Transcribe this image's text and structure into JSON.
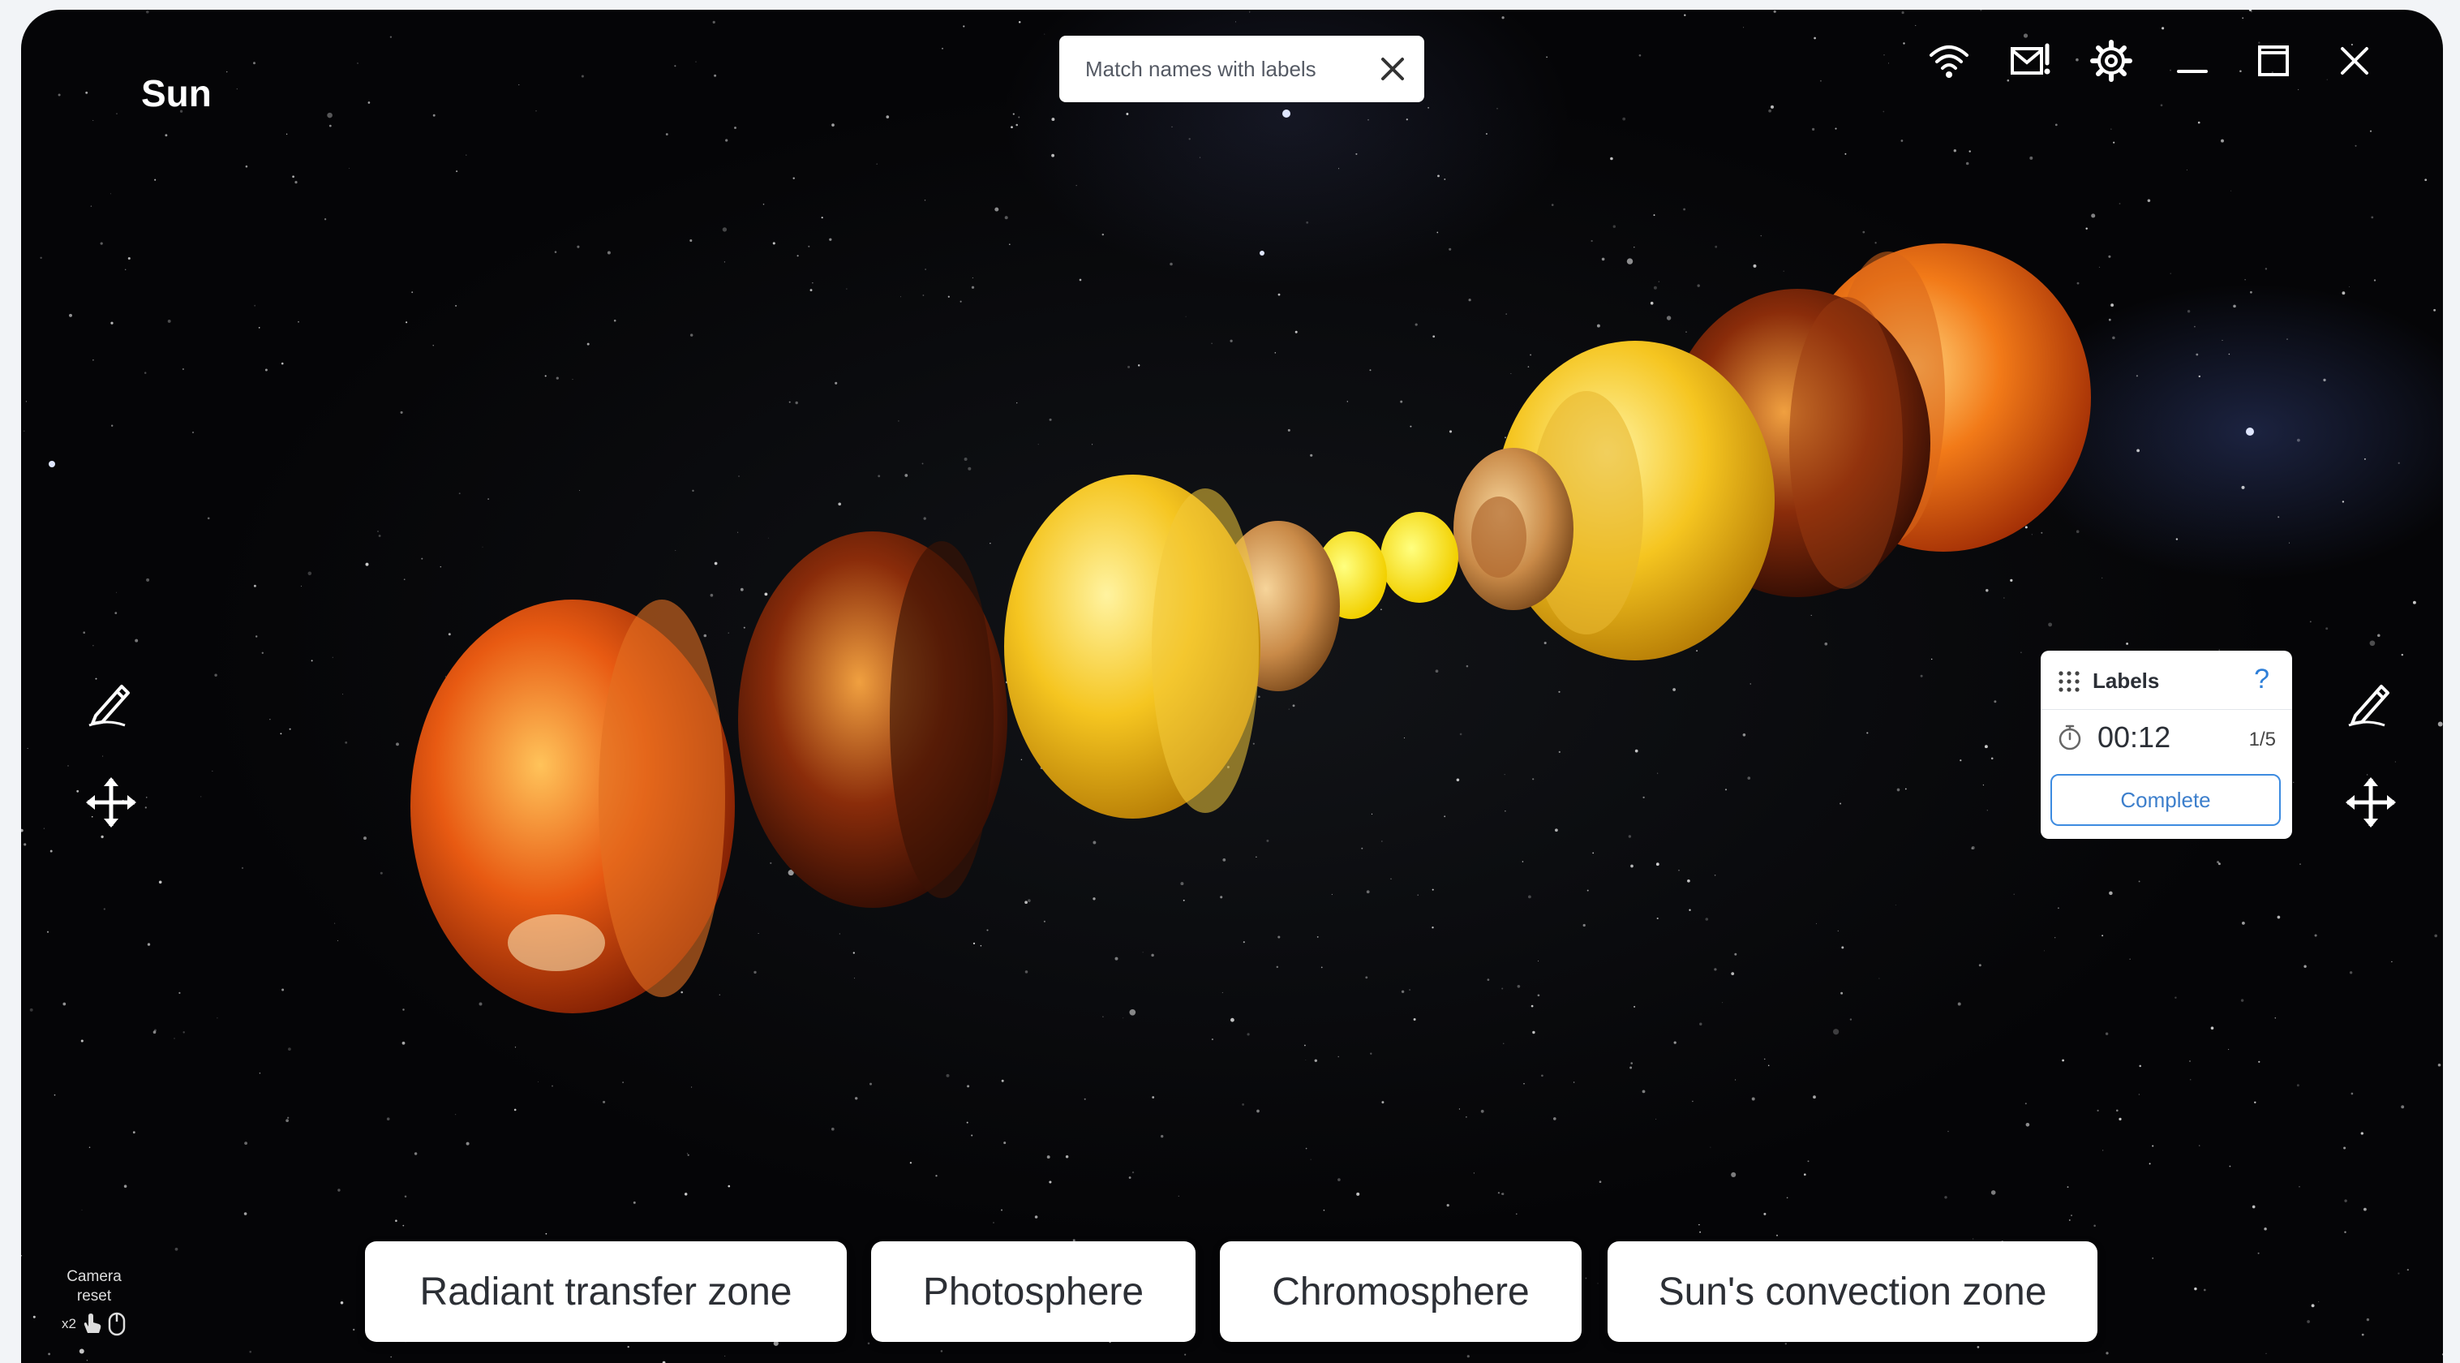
{
  "app": {
    "title": "Sun"
  },
  "task": {
    "text": "Match names with labels",
    "close_icon": "close-icon"
  },
  "topbar": {
    "icons": [
      "wifi-icon",
      "mail-alert-icon",
      "gear-icon",
      "minimize-icon",
      "maximize-icon",
      "close-icon"
    ]
  },
  "tools": {
    "left": [
      "pen-icon",
      "move-icon"
    ],
    "right": [
      "pen-icon",
      "move-icon"
    ]
  },
  "labels_panel": {
    "title": "Labels",
    "help": "?",
    "timer": "00:12",
    "progress": "1/5",
    "complete_label": "Complete"
  },
  "answers": [
    "Radiant transfer zone",
    "Photosphere",
    "Chromosphere",
    "Sun's convection zone"
  ],
  "camera_reset": {
    "label_line1": "Camera",
    "label_line2": "reset",
    "multiplier": "x2"
  },
  "colors": {
    "background": "#050507",
    "accent": "#3d8be0",
    "panel": "#ffffff"
  }
}
